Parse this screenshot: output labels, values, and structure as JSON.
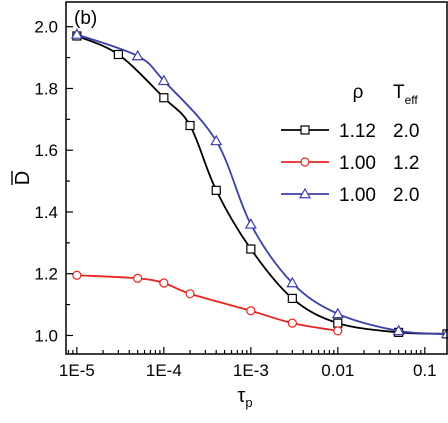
{
  "chart_data": {
    "type": "line",
    "panel_label": "(b)",
    "xscale": "log",
    "xlim": [
      7.5e-06,
      0.18
    ],
    "ylim": [
      0.94,
      2.08
    ],
    "xlabel": {
      "main": "τ",
      "sub": "p"
    },
    "ylabel": "D",
    "xticks": [
      {
        "value": 1e-05,
        "label": "1E-5"
      },
      {
        "value": 0.0001,
        "label": "1E-4"
      },
      {
        "value": 0.001,
        "label": "1E-3"
      },
      {
        "value": 0.01,
        "label": "0.01"
      },
      {
        "value": 0.1,
        "label": "0.1"
      }
    ],
    "yticks": [
      {
        "value": 1.0,
        "label": "1.0"
      },
      {
        "value": 1.2,
        "label": "1.2"
      },
      {
        "value": 1.4,
        "label": "1.4"
      },
      {
        "value": 1.6,
        "label": "1.6"
      },
      {
        "value": 1.8,
        "label": "1.8"
      },
      {
        "value": 2.0,
        "label": "2.0"
      }
    ],
    "legend": {
      "position": "right",
      "header": {
        "col1": "ρ",
        "col2_main": "T",
        "col2_sub": "eff"
      }
    },
    "series": [
      {
        "rho": "1.12",
        "teff": "2.0",
        "color": "#000000",
        "marker": "square",
        "x": [
          1e-05,
          3e-05,
          0.0001,
          0.0002,
          0.0004,
          0.001,
          0.003,
          0.01,
          0.05,
          0.18
        ],
        "y": [
          1.97,
          1.91,
          1.77,
          1.68,
          1.47,
          1.28,
          1.12,
          1.04,
          1.01,
          1.005
        ]
      },
      {
        "rho": "1.00",
        "teff": "1.2",
        "color": "#e8251f",
        "marker": "circle",
        "x": [
          1e-05,
          5e-05,
          0.0001,
          0.0002,
          0.001,
          0.003,
          0.01
        ],
        "y": [
          1.195,
          1.185,
          1.17,
          1.135,
          1.08,
          1.04,
          1.015
        ]
      },
      {
        "rho": "1.00",
        "teff": "2.0",
        "color": "#3b3fa8",
        "marker": "triangle",
        "x": [
          1e-05,
          5e-05,
          0.0001,
          0.0004,
          0.001,
          0.003,
          0.01,
          0.05,
          0.18
        ],
        "y": [
          1.975,
          1.905,
          1.825,
          1.63,
          1.36,
          1.17,
          1.07,
          1.015,
          1.005
        ]
      }
    ]
  }
}
